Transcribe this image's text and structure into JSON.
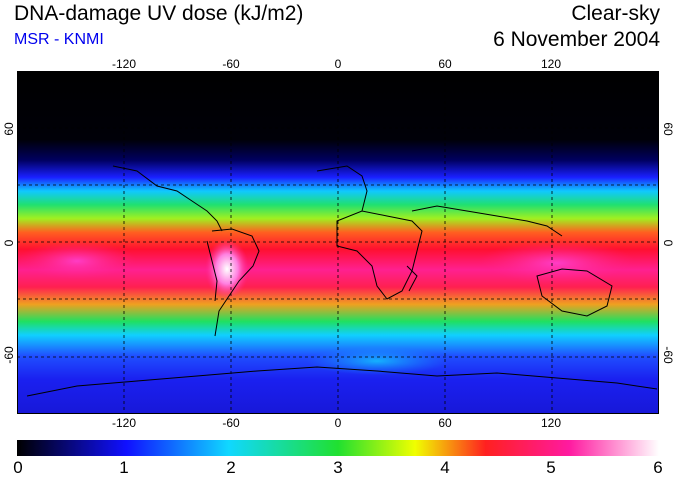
{
  "header": {
    "title": "DNA-damage UV dose (kJ/m2)",
    "source": "MSR - KNMI",
    "sky_condition": "Clear-sky",
    "date": "6 November 2004"
  },
  "map": {
    "projection": "equirectangular",
    "lon_range": [
      -180,
      180
    ],
    "lat_range": [
      -90,
      90
    ],
    "gridlines": "dashed, every 30 degrees",
    "lon_labels": [
      "-120",
      "-60",
      "0",
      "60",
      "120"
    ],
    "lat_labels_left": [
      "60",
      "0",
      "-60"
    ],
    "lat_labels_right": [
      "60",
      "0",
      "-60"
    ]
  },
  "colorbar": {
    "min": 0,
    "max": 6,
    "labels": [
      "0",
      "1",
      "2",
      "3",
      "4",
      "5",
      "6"
    ],
    "colors": [
      "#000000",
      "#1010ff",
      "#10d8ff",
      "#20e030",
      "#f0ff00",
      "#ff2020",
      "#ff1aa0",
      "#ffffff"
    ]
  }
}
